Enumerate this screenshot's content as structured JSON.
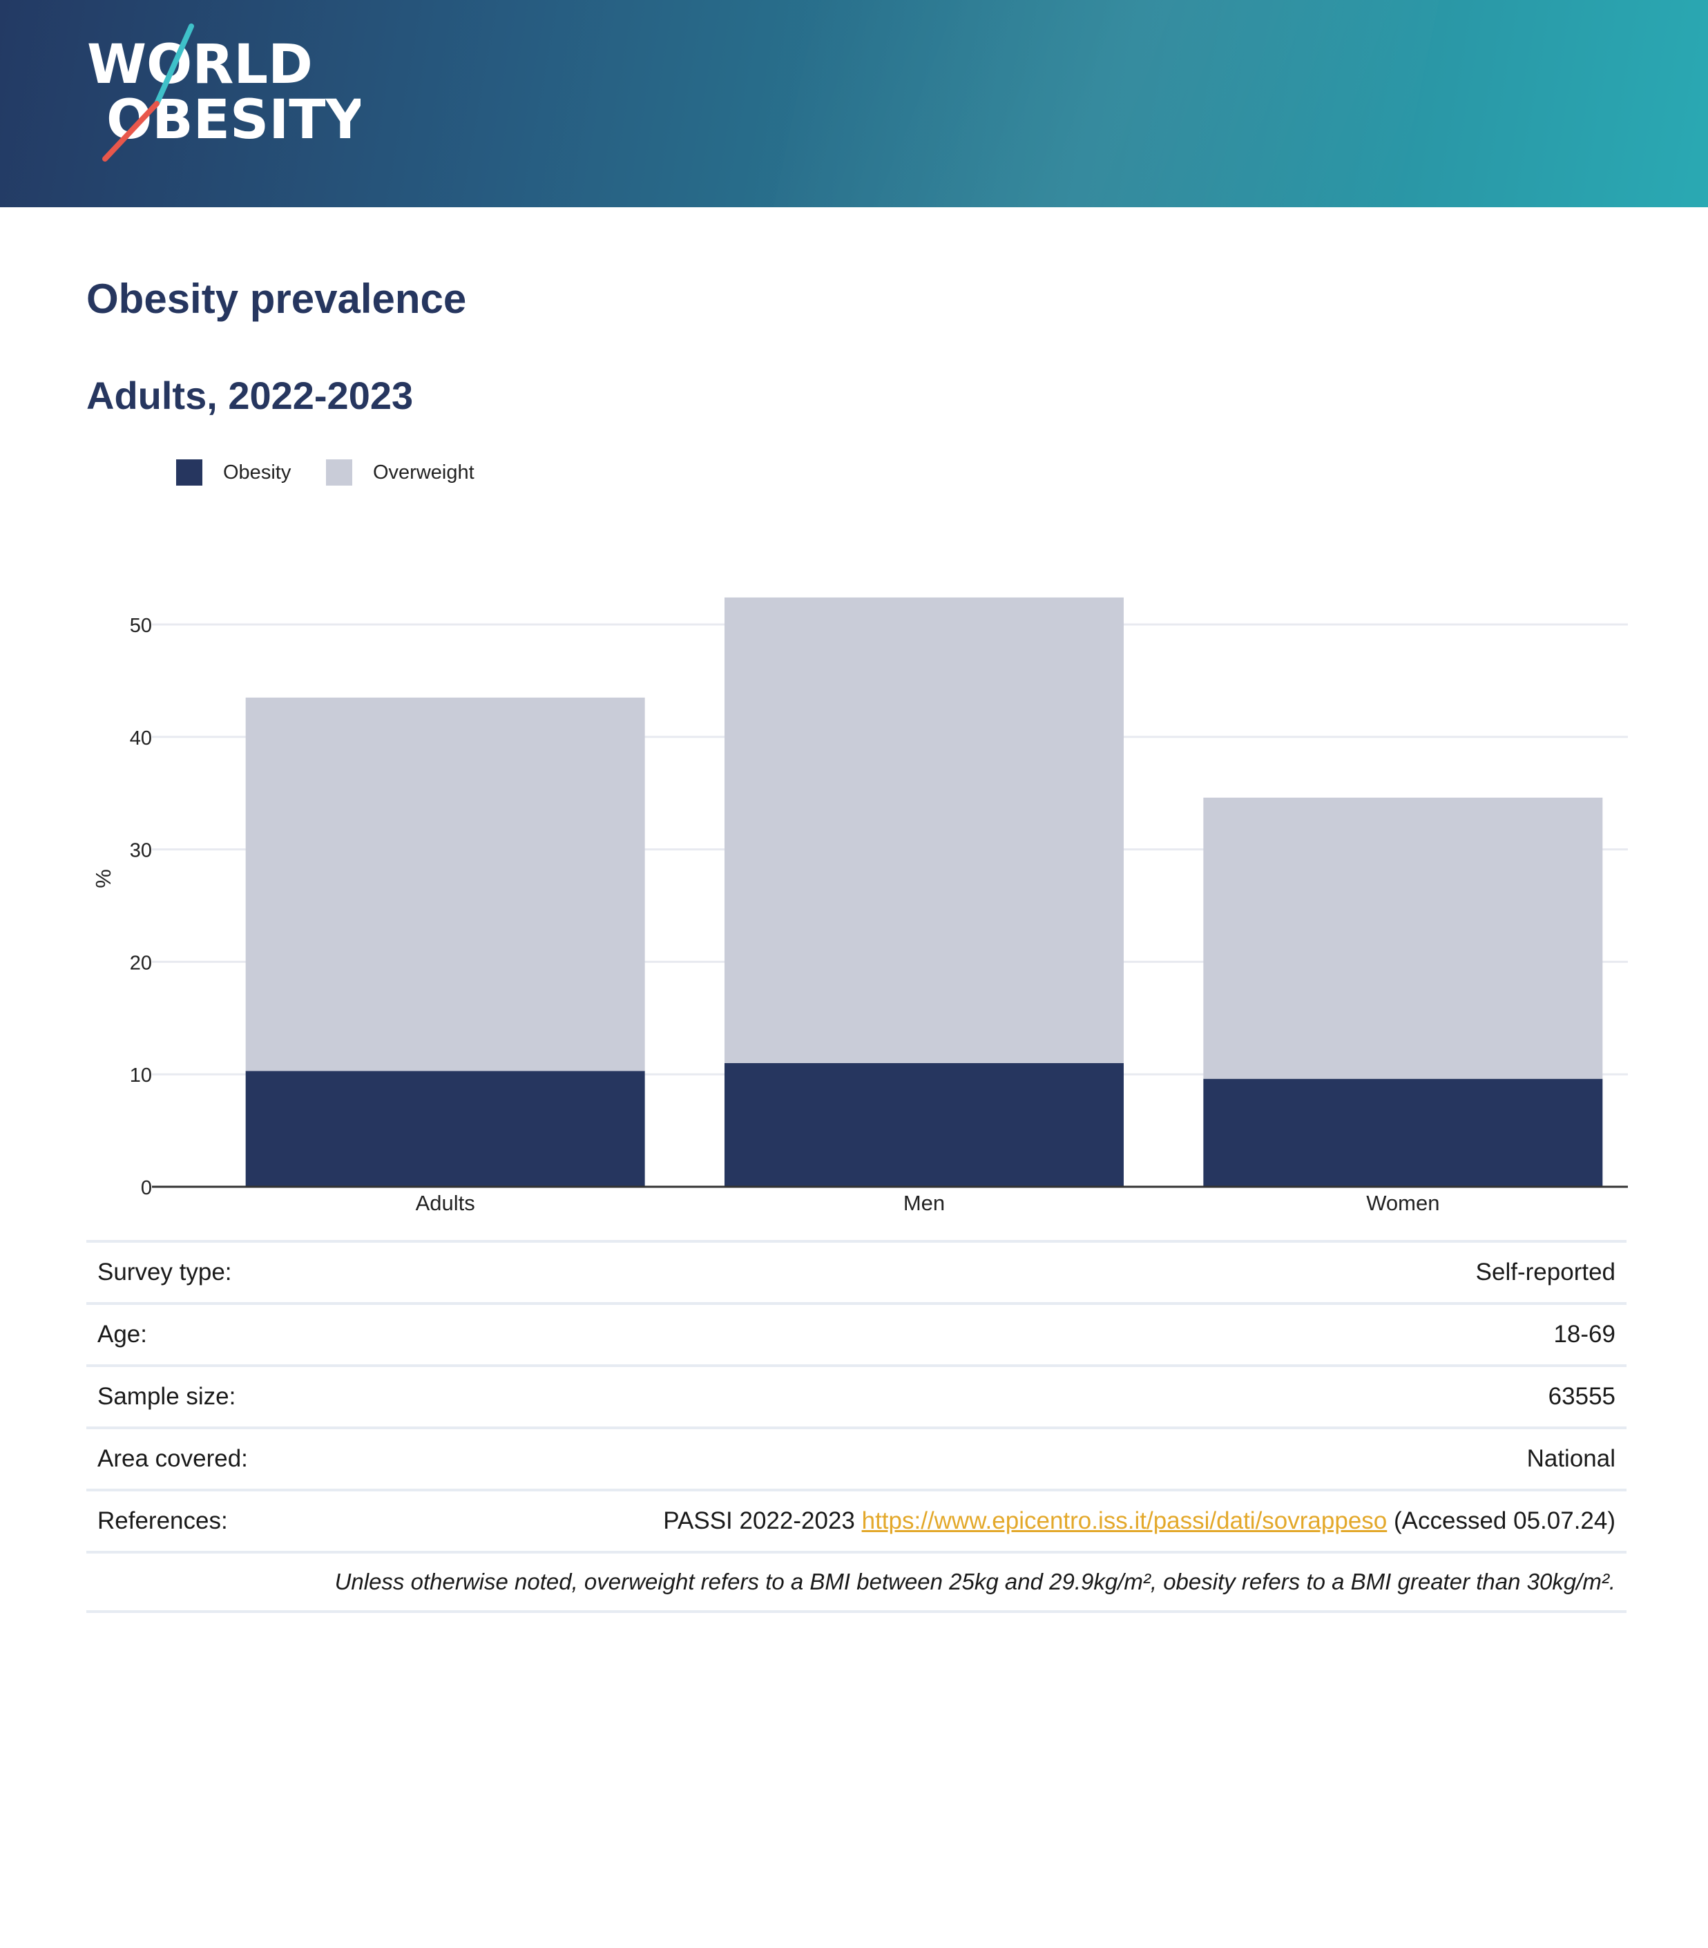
{
  "header": {
    "logo_line1": "WORLD",
    "logo_line2": "OBESITY",
    "logo_text_color": "#ffffff",
    "logo_slash_colors": [
      "#3fc1c9",
      "#e8574b"
    ]
  },
  "page": {
    "title": "Obesity prevalence",
    "subtitle": "Adults, 2022-2023"
  },
  "legend": [
    {
      "label": "Obesity",
      "color": "#26365f"
    },
    {
      "label": "Overweight",
      "color": "#c9ccd8"
    }
  ],
  "chart_data": {
    "type": "bar",
    "stacked": true,
    "categories": [
      "Adults",
      "Men",
      "Women"
    ],
    "series": [
      {
        "name": "Obesity",
        "color": "#26365f",
        "values": [
          10.3,
          11.0,
          9.6
        ]
      },
      {
        "name": "Overweight",
        "color": "#c9ccd8",
        "values": [
          33.2,
          41.4,
          25.0
        ]
      }
    ],
    "ylabel": "%",
    "xlabel": "",
    "ylim": [
      0,
      55
    ],
    "yticks": [
      0,
      10,
      20,
      30,
      40,
      50
    ],
    "grid": true,
    "legend_position": "top-left"
  },
  "info": {
    "survey_type": {
      "label": "Survey type:",
      "value": "Self-reported"
    },
    "age": {
      "label": "Age:",
      "value": "18-69"
    },
    "sample_size": {
      "label": "Sample size:",
      "value": "63555"
    },
    "area_covered": {
      "label": "Area covered:",
      "value": "National"
    },
    "references": {
      "label": "References:",
      "prefix": "PASSI 2022-2023",
      "link": "https://www.epicentro.iss.it/passi/dati/sovrappeso",
      "suffix": "(Accessed 05.07.24)"
    },
    "note": "Unless otherwise noted, overweight refers to a BMI between 25kg and 29.9kg/m², obesity refers to a BMI greater than 30kg/m²."
  }
}
